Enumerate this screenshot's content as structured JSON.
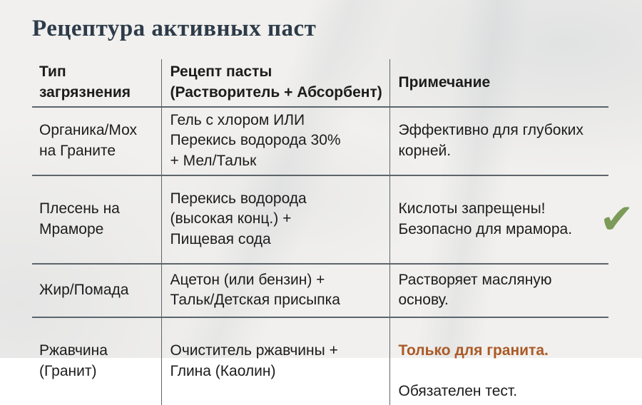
{
  "title": "Рецептура активных паст",
  "table": {
    "headers": {
      "col1": "Тип\nзагрязнения",
      "col2": "Рецепт пасты\n(Растворитель + Абсорбент)",
      "col3": "Примечание"
    },
    "rows": [
      {
        "type": "Органика/Мох\nна Граните",
        "recipe": "Гель с хлором ИЛИ\nПерекись водорода 30%\n+ Мел/Тальк",
        "note": "Эффективно для глубоких\nкорней."
      },
      {
        "type": "Плесень на\nМраморе",
        "recipe": "Перекись водорода\n(высокая конц.) +\nПищевая сода",
        "note": "Кислоты запрещены!\nБезопасно для мрамора.",
        "check_icon": "✔"
      },
      {
        "type": "Жир/Помада",
        "recipe": "Ацетон (или бензин) +\nТальк/Детская присыпка",
        "note": "Растворяет масляную\nоснову."
      },
      {
        "type": "Ржавчина\n(Гранит)",
        "recipe": "Очиститель ржавчины +\nГлина (Каолин)",
        "note_highlight": "Только для гранита.",
        "note": "Обязателен тест."
      }
    ]
  },
  "colors": {
    "title": "#2d3b49",
    "text": "#1c1c1c",
    "grid_line": "#5c656b",
    "highlight_orange": "#ab5a26",
    "check_green": "#7c9a58",
    "background": "#f1f0ee"
  }
}
